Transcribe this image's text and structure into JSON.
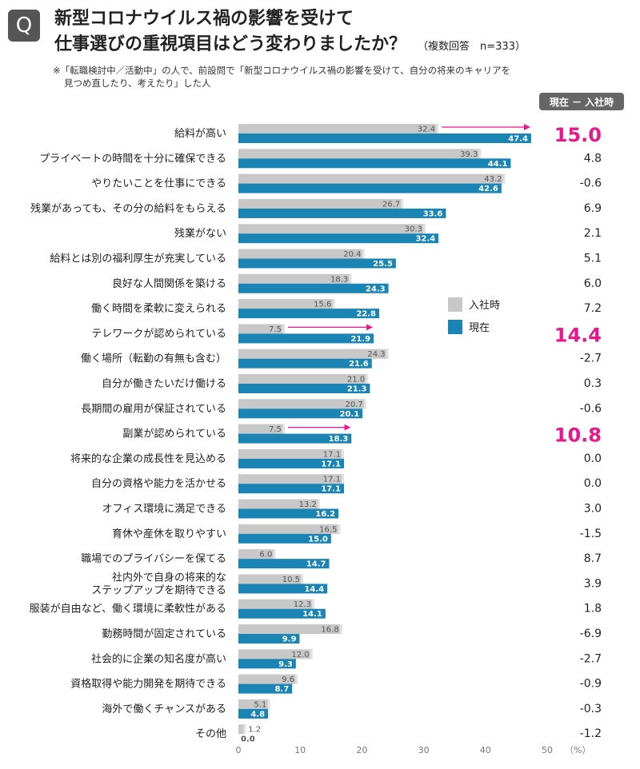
{
  "header": {
    "badge": "Q",
    "title_line1": "新型コロナウイルス禍の影響を受けて",
    "title_line2": "仕事選びの重視項目はどう変わりましたか？",
    "subtitle": "（複数回答　n=333）",
    "note_line1": "※「転職検討中／活動中」の人で、前設問で「新型コロナウイルス禍の影響を受けて、自分の将来のキャリアを",
    "note_line2": "見つめ直したり、考えたり」した人",
    "diff_header": "現在 － 入社時"
  },
  "colors": {
    "before": "#c8c8c8",
    "now": "#1a84b4",
    "highlight": "#e8178a",
    "text": "#222222"
  },
  "chart_data": {
    "type": "bar",
    "orientation": "horizontal",
    "categories": [
      "給料が高い",
      "プライベートの時間を十分に確保できる",
      "やりたいことを仕事にできる",
      "残業があっても、その分の給料をもらえる",
      "残業がない",
      "給料とは別の福利厚生が充実している",
      "良好な人間関係を築ける",
      "働く時間を柔軟に変えられる",
      "テレワークが認められている",
      "働く場所（転勤の有無も含む）",
      "自分が働きたいだけ働ける",
      "長期間の雇用が保証されている",
      "副業が認められている",
      "将来的な企業の成長性を見込める",
      "自分の資格や能力を活かせる",
      "オフィス環境に満足できる",
      "育休や産休を取りやすい",
      "職場でのプライバシーを保てる",
      "社内外で自身の将来的な\nステップアップを期待できる",
      "服装が自由など、働く環境に柔軟性がある",
      "勤務時間が固定されている",
      "社会的に企業の知名度が高い",
      "資格取得や能力開発を期待できる",
      "海外で働くチャンスがある",
      "その他"
    ],
    "series": [
      {
        "name": "入社時",
        "values": [
          32.4,
          39.3,
          43.2,
          26.7,
          30.3,
          20.4,
          18.3,
          15.6,
          7.5,
          24.3,
          21.0,
          20.7,
          7.5,
          17.1,
          17.1,
          13.2,
          16.5,
          6.0,
          10.5,
          12.3,
          16.8,
          12.0,
          9.6,
          5.1,
          1.2
        ]
      },
      {
        "name": "現在",
        "values": [
          47.4,
          44.1,
          42.6,
          33.6,
          32.4,
          25.5,
          24.3,
          22.8,
          21.9,
          21.6,
          21.3,
          20.1,
          18.3,
          17.1,
          17.1,
          16.2,
          15.0,
          14.7,
          14.4,
          14.1,
          9.9,
          9.3,
          8.7,
          4.8,
          0.0
        ]
      }
    ],
    "differences": [
      "15.0",
      "4.8",
      "-0.6",
      "6.9",
      "2.1",
      "5.1",
      "6.0",
      "7.2",
      "14.4",
      "-2.7",
      "0.3",
      "-0.6",
      "10.8",
      "0.0",
      "0.0",
      "3.0",
      "-1.5",
      "8.7",
      "3.9",
      "1.8",
      "-6.9",
      "-2.7",
      "-0.9",
      "-0.3",
      "-1.2"
    ],
    "highlighted_indices": [
      0,
      8,
      12
    ],
    "x_ticks": [
      "0",
      "10",
      "20",
      "30",
      "40",
      "50"
    ],
    "x_unit": "（%）",
    "xlim": [
      0,
      50
    ],
    "legend": {
      "placement": "center-right",
      "items": [
        "入社時",
        "現在"
      ]
    }
  }
}
